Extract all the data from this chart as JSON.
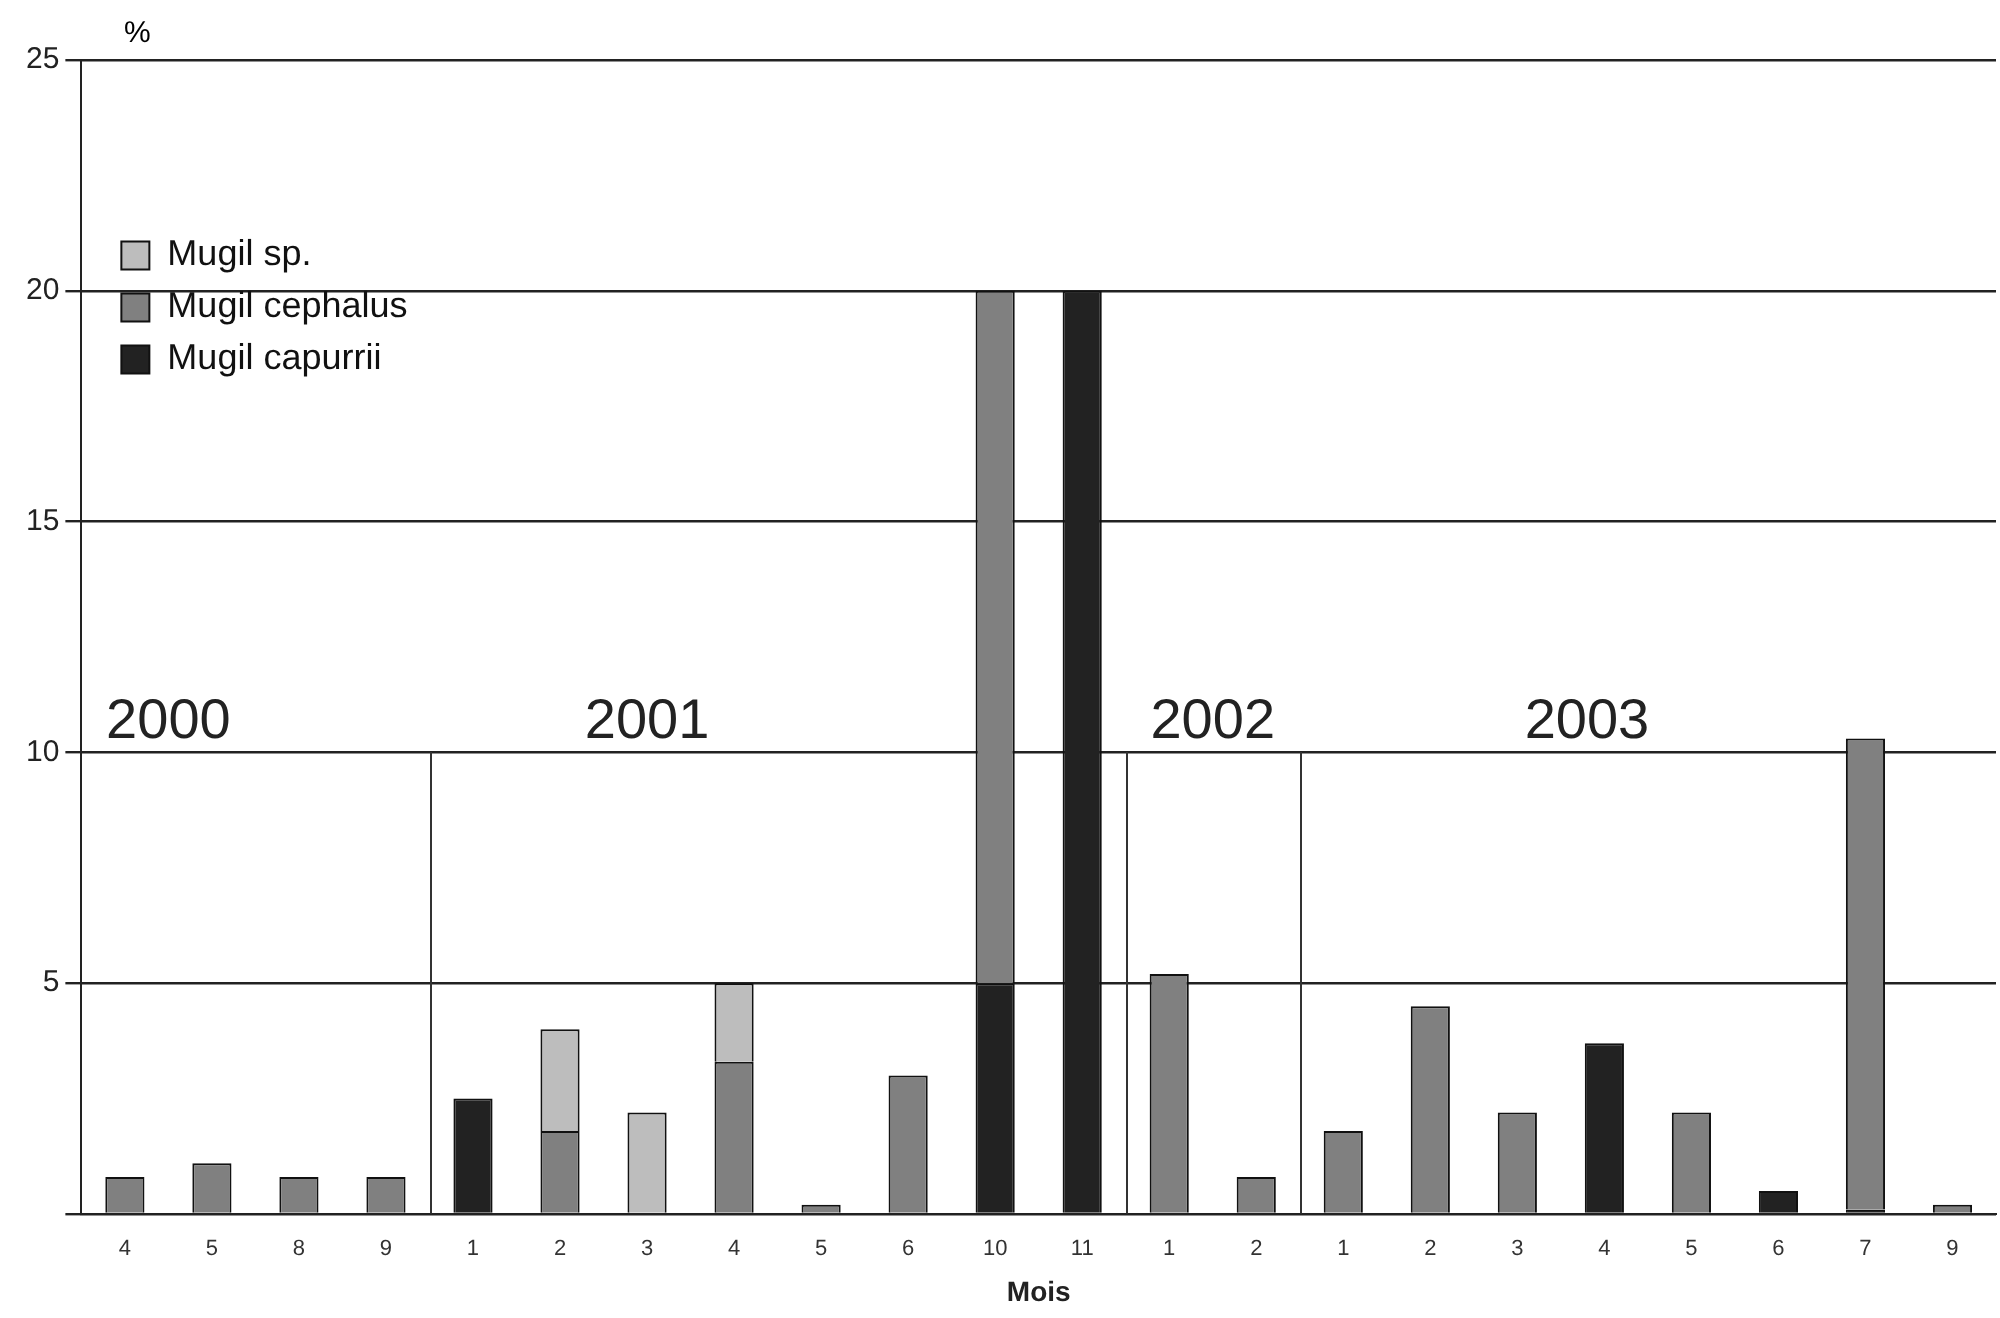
{
  "chart_data": {
    "type": "bar",
    "stacked": true,
    "xlabel": "Mois",
    "ylabel": "%",
    "categories": [
      "4",
      "5",
      "8",
      "9",
      "1",
      "2",
      "3",
      "4",
      "5",
      "6",
      "10",
      "11",
      "1",
      "2",
      "1",
      "2",
      "3",
      "4",
      "5",
      "6",
      "7",
      "9"
    ],
    "series": [
      {
        "name": "Mugil capurrii",
        "color": "#222222",
        "values": [
          null,
          null,
          null,
          null,
          2.5,
          null,
          null,
          null,
          null,
          null,
          5,
          20,
          null,
          null,
          null,
          null,
          null,
          3.7,
          null,
          0.5,
          0.1,
          null
        ]
      },
      {
        "name": "Mugil cephalus",
        "color": "#808080",
        "values": [
          0.8,
          1.1,
          0.8,
          0.8,
          null,
          1.8,
          null,
          3.3,
          0.2,
          3.0,
          15,
          null,
          5.2,
          0.8,
          1.8,
          4.5,
          2.2,
          null,
          2.2,
          null,
          10.2,
          0.2
        ]
      },
      {
        "name": "Mugil sp.",
        "color": "#bdbdbd",
        "values": [
          null,
          null,
          null,
          null,
          null,
          2.2,
          2.2,
          1.7,
          null,
          null,
          null,
          null,
          null,
          null,
          null,
          null,
          null,
          null,
          null,
          null,
          null,
          null
        ]
      }
    ],
    "ylim": [
      0,
      25
    ],
    "yticks": [
      {
        "value": 0,
        "label": null
      },
      5,
      10,
      15,
      20,
      25
    ],
    "grid": "y",
    "legend": "top left",
    "annotations": [
      "2000",
      "2001",
      "2002",
      "2003"
    ]
  }
}
